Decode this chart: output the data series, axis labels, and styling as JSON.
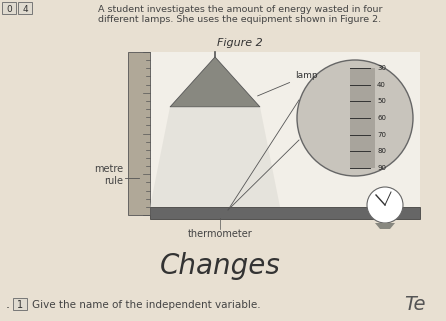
{
  "bg_color": "#e8e0d2",
  "diagram_bg": "#f0ede6",
  "white_area": "#f5f3ee",
  "title_text": "Figure 2",
  "header_text": "A student investigates the amount of energy wasted in four\ndifferent lamps. She uses the equipment shown in Figure 2.",
  "metre_rule_label": "metre\nrule",
  "thermometer_label": "thermometer",
  "lamp_label": "lamp",
  "handwritten_text": "Changes",
  "bottom_text": "Give the name of the independent variable.",
  "bottom_box_text": "1",
  "handwritten_partial": "Te",
  "header_fontsize": 6.8,
  "title_fontsize": 8.0,
  "box0_text": "0",
  "box1_text": "4"
}
